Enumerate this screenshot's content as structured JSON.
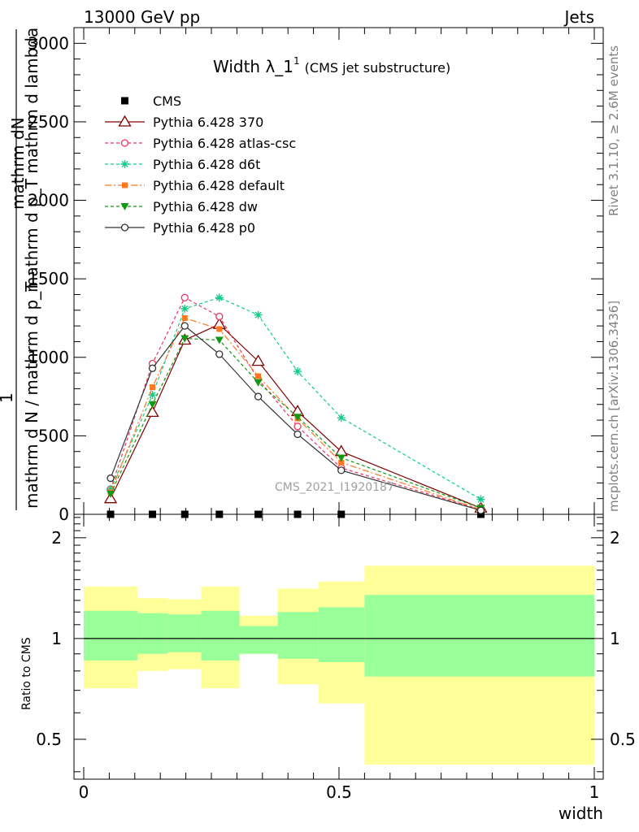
{
  "header": {
    "left": "13000 GeV pp",
    "right": "Jets"
  },
  "plot_title": {
    "main": "Width λ_1",
    "sup": "1",
    "sub": "(CMS jet substructure)"
  },
  "side_labels": {
    "rivet": "Rivet 3.1.10, ≥ 2.6M events",
    "mcplots": "mcplots.cern.ch [arXiv:1306.3436]"
  },
  "watermark": "CMS_2021_I1920187",
  "ylabel_main": {
    "one": "1",
    "top": "mathrm dN",
    "bottom": "mathrm d N / mathrm d p_T",
    "top2": "mathrm d p_T mathrm d lambda",
    "bottom2": "mathrm d p_T mathrm d p_T mathrm d lambda"
  },
  "ylabel_ratio": "Ratio to CMS",
  "xlabel": "width",
  "chart_data": [
    {
      "type": "line",
      "panel": "main",
      "ylim": [
        0,
        3100
      ],
      "xlim": [
        -0.02,
        1.0
      ],
      "y_ticks": [
        0,
        500,
        1000,
        1500,
        2000,
        2500,
        3000
      ],
      "y_tick_labels": [
        "0",
        "500",
        "1000",
        "1500",
        "2000",
        "2500",
        "3000"
      ],
      "x": [
        0.0526,
        0.1346,
        0.1979,
        0.2656,
        0.3417,
        0.4189,
        0.5044,
        0.7778
      ],
      "series": [
        {
          "name": "CMS",
          "color": "#000000",
          "marker": "square",
          "dash": "none",
          "values": [
            0,
            0,
            0,
            0,
            0,
            0,
            0,
            0
          ]
        },
        {
          "name": "Pythia 6.428 370",
          "color": "#800000",
          "marker": "triangle-open",
          "dash": "solid",
          "values": [
            100,
            650,
            1110,
            1210,
            975,
            655,
            400,
            40
          ]
        },
        {
          "name": "Pythia 6.428 atlas-csc",
          "color": "#ee3366",
          "marker": "circle-open",
          "dash": "4,3",
          "values": [
            160,
            960,
            1380,
            1260,
            860,
            560,
            295,
            30
          ]
        },
        {
          "name": "Pythia 6.428 d6t",
          "color": "#11cc88",
          "marker": "star",
          "dash": "4,3",
          "values": [
            160,
            760,
            1310,
            1380,
            1270,
            910,
            615,
            95
          ]
        },
        {
          "name": "Pythia 6.428 default",
          "color": "#ff7722",
          "marker": "square-filled",
          "dash": "8,3,2,3",
          "values": [
            140,
            810,
            1250,
            1180,
            880,
            610,
            330,
            30
          ]
        },
        {
          "name": "Pythia 6.428 dw",
          "color": "#119911",
          "marker": "triangle-down-filled",
          "dash": "4,3",
          "values": [
            130,
            700,
            1120,
            1110,
            840,
            620,
            360,
            40
          ]
        },
        {
          "name": "Pythia 6.428 p0",
          "color": "#333333",
          "marker": "circle-open",
          "dash": "solid",
          "values": [
            230,
            930,
            1200,
            1020,
            750,
            510,
            280,
            25
          ]
        }
      ]
    },
    {
      "type": "area",
      "panel": "ratio",
      "ylim": [
        0.38,
        2.35
      ],
      "y_ticks": [
        0.5,
        1,
        2
      ],
      "y_tick_labels": [
        "0.5",
        "1",
        "2"
      ],
      "x_ticks": [
        0,
        0.5,
        1
      ],
      "x_tick_labels": [
        "0",
        "0.5",
        "1"
      ],
      "bin_edges": [
        0.0,
        0.105,
        0.165,
        0.23,
        0.305,
        0.38,
        0.46,
        0.55,
        1.0
      ],
      "band_outer": [
        [
          0.71,
          1.43
        ],
        [
          0.8,
          1.32
        ],
        [
          0.81,
          1.31
        ],
        [
          0.71,
          1.43
        ],
        [
          0.9,
          1.17
        ],
        [
          0.73,
          1.41
        ],
        [
          0.64,
          1.48
        ],
        [
          0.42,
          1.65
        ]
      ],
      "band_inner": [
        [
          0.86,
          1.21
        ],
        [
          0.9,
          1.19
        ],
        [
          0.91,
          1.18
        ],
        [
          0.86,
          1.21
        ],
        [
          0.9,
          1.09
        ],
        [
          0.87,
          1.2
        ],
        [
          0.85,
          1.24
        ],
        [
          0.77,
          1.35
        ]
      ],
      "reference": 1,
      "inner_color": "#99ff99",
      "outer_color": "#ffff99"
    }
  ]
}
